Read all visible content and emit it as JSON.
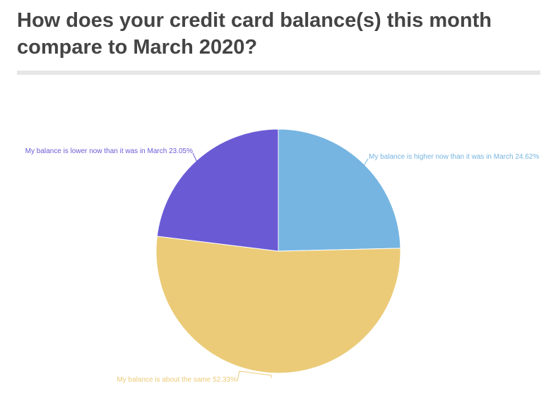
{
  "chart_data": {
    "type": "pie",
    "title": "How does your credit card balance(s) this month compare to March 2020?",
    "start_angle": "top, clockwise",
    "slices": [
      {
        "label": "My balance is higher now than it was in March",
        "value": 24.62,
        "display": "My balance is higher now than it was in March 24.62%",
        "color": "#76b5e1"
      },
      {
        "label": "My balance is about the same",
        "value": 52.33,
        "display": "My balance is about the same 52.33%",
        "color": "#ebcb78"
      },
      {
        "label": "My balance is lower now than it was in March",
        "value": 23.05,
        "display": "My balance is lower now than it was in March 23.05%",
        "color": "#6a5bd5"
      }
    ]
  }
}
